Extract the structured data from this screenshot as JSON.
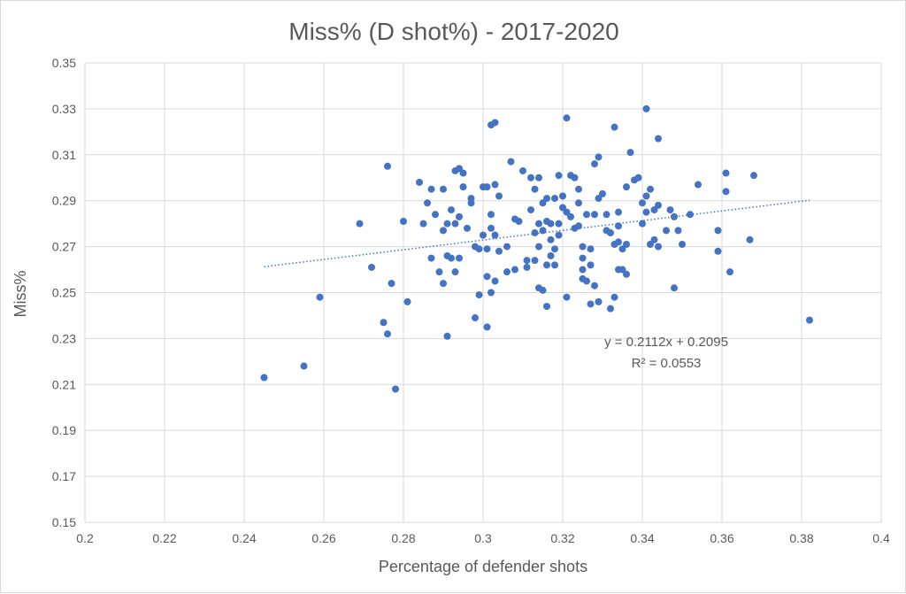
{
  "chart_data": {
    "type": "scatter",
    "title": "Miss% (D shot%) - 2017-2020",
    "xlabel": "Percentage of defender shots",
    "ylabel": "Miss%",
    "xlim": [
      0.2,
      0.4
    ],
    "ylim": [
      0.15,
      0.35
    ],
    "xticks": [
      "0.2",
      "0.22",
      "0.24",
      "0.26",
      "0.28",
      "0.3",
      "0.32",
      "0.34",
      "0.36",
      "0.38",
      "0.4"
    ],
    "yticks": [
      "0.15",
      "0.17",
      "0.19",
      "0.21",
      "0.23",
      "0.25",
      "0.27",
      "0.29",
      "0.31",
      "0.33",
      "0.35"
    ],
    "grid": "vertical-and-horizontal",
    "marker_color": "#4472c4",
    "trendline": {
      "type": "linear",
      "slope": 0.2112,
      "intercept": 0.2095,
      "x_range": [
        0.245,
        0.382
      ],
      "equation_label": "y = 0.2112x + 0.2095",
      "r2_label": "R² = 0.0553"
    },
    "points": [
      [
        0.245,
        0.213
      ],
      [
        0.255,
        0.218
      ],
      [
        0.259,
        0.248
      ],
      [
        0.269,
        0.28
      ],
      [
        0.272,
        0.261
      ],
      [
        0.275,
        0.237
      ],
      [
        0.276,
        0.305
      ],
      [
        0.276,
        0.232
      ],
      [
        0.277,
        0.254
      ],
      [
        0.278,
        0.208
      ],
      [
        0.28,
        0.281
      ],
      [
        0.281,
        0.246
      ],
      [
        0.284,
        0.298
      ],
      [
        0.285,
        0.28
      ],
      [
        0.286,
        0.289
      ],
      [
        0.287,
        0.265
      ],
      [
        0.287,
        0.295
      ],
      [
        0.288,
        0.284
      ],
      [
        0.289,
        0.259
      ],
      [
        0.29,
        0.277
      ],
      [
        0.29,
        0.295
      ],
      [
        0.29,
        0.254
      ],
      [
        0.291,
        0.266
      ],
      [
        0.291,
        0.28
      ],
      [
        0.291,
        0.231
      ],
      [
        0.292,
        0.265
      ],
      [
        0.292,
        0.286
      ],
      [
        0.293,
        0.28
      ],
      [
        0.293,
        0.259
      ],
      [
        0.293,
        0.303
      ],
      [
        0.294,
        0.304
      ],
      [
        0.294,
        0.283
      ],
      [
        0.294,
        0.265
      ],
      [
        0.295,
        0.302
      ],
      [
        0.295,
        0.296
      ],
      [
        0.296,
        0.278
      ],
      [
        0.297,
        0.289
      ],
      [
        0.297,
        0.291
      ],
      [
        0.298,
        0.27
      ],
      [
        0.298,
        0.239
      ],
      [
        0.299,
        0.269
      ],
      [
        0.299,
        0.249
      ],
      [
        0.3,
        0.296
      ],
      [
        0.3,
        0.275
      ],
      [
        0.301,
        0.296
      ],
      [
        0.301,
        0.269
      ],
      [
        0.301,
        0.235
      ],
      [
        0.301,
        0.257
      ],
      [
        0.302,
        0.278
      ],
      [
        0.302,
        0.25
      ],
      [
        0.302,
        0.284
      ],
      [
        0.302,
        0.323
      ],
      [
        0.303,
        0.324
      ],
      [
        0.303,
        0.275
      ],
      [
        0.303,
        0.297
      ],
      [
        0.303,
        0.255
      ],
      [
        0.304,
        0.292
      ],
      [
        0.304,
        0.268
      ],
      [
        0.306,
        0.259
      ],
      [
        0.306,
        0.27
      ],
      [
        0.307,
        0.307
      ],
      [
        0.308,
        0.282
      ],
      [
        0.308,
        0.26
      ],
      [
        0.309,
        0.281
      ],
      [
        0.31,
        0.303
      ],
      [
        0.311,
        0.264
      ],
      [
        0.311,
        0.261
      ],
      [
        0.312,
        0.286
      ],
      [
        0.312,
        0.3
      ],
      [
        0.313,
        0.276
      ],
      [
        0.313,
        0.295
      ],
      [
        0.313,
        0.264
      ],
      [
        0.314,
        0.28
      ],
      [
        0.314,
        0.252
      ],
      [
        0.314,
        0.27
      ],
      [
        0.314,
        0.3
      ],
      [
        0.315,
        0.289
      ],
      [
        0.315,
        0.251
      ],
      [
        0.315,
        0.277
      ],
      [
        0.316,
        0.281
      ],
      [
        0.316,
        0.291
      ],
      [
        0.316,
        0.262
      ],
      [
        0.316,
        0.244
      ],
      [
        0.317,
        0.273
      ],
      [
        0.317,
        0.28
      ],
      [
        0.317,
        0.266
      ],
      [
        0.318,
        0.291
      ],
      [
        0.318,
        0.269
      ],
      [
        0.318,
        0.262
      ],
      [
        0.319,
        0.301
      ],
      [
        0.319,
        0.28
      ],
      [
        0.319,
        0.275
      ],
      [
        0.32,
        0.292
      ],
      [
        0.32,
        0.287
      ],
      [
        0.321,
        0.285
      ],
      [
        0.321,
        0.248
      ],
      [
        0.321,
        0.326
      ],
      [
        0.322,
        0.301
      ],
      [
        0.322,
        0.283
      ],
      [
        0.323,
        0.3
      ],
      [
        0.323,
        0.278
      ],
      [
        0.324,
        0.295
      ],
      [
        0.324,
        0.289
      ],
      [
        0.324,
        0.279
      ],
      [
        0.325,
        0.27
      ],
      [
        0.325,
        0.265
      ],
      [
        0.325,
        0.256
      ],
      [
        0.325,
        0.26
      ],
      [
        0.326,
        0.255
      ],
      [
        0.326,
        0.284
      ],
      [
        0.327,
        0.245
      ],
      [
        0.327,
        0.262
      ],
      [
        0.327,
        0.269
      ],
      [
        0.328,
        0.306
      ],
      [
        0.328,
        0.284
      ],
      [
        0.328,
        0.253
      ],
      [
        0.329,
        0.309
      ],
      [
        0.329,
        0.291
      ],
      [
        0.329,
        0.246
      ],
      [
        0.33,
        0.293
      ],
      [
        0.331,
        0.277
      ],
      [
        0.331,
        0.284
      ],
      [
        0.332,
        0.276
      ],
      [
        0.332,
        0.243
      ],
      [
        0.333,
        0.322
      ],
      [
        0.333,
        0.271
      ],
      [
        0.333,
        0.248
      ],
      [
        0.334,
        0.285
      ],
      [
        0.334,
        0.26
      ],
      [
        0.334,
        0.279
      ],
      [
        0.334,
        0.272
      ],
      [
        0.335,
        0.269
      ],
      [
        0.335,
        0.26
      ],
      [
        0.336,
        0.271
      ],
      [
        0.336,
        0.258
      ],
      [
        0.336,
        0.296
      ],
      [
        0.337,
        0.311
      ],
      [
        0.338,
        0.299
      ],
      [
        0.339,
        0.3
      ],
      [
        0.34,
        0.289
      ],
      [
        0.34,
        0.28
      ],
      [
        0.341,
        0.33
      ],
      [
        0.341,
        0.292
      ],
      [
        0.341,
        0.285
      ],
      [
        0.342,
        0.295
      ],
      [
        0.342,
        0.271
      ],
      [
        0.343,
        0.286
      ],
      [
        0.343,
        0.273
      ],
      [
        0.344,
        0.317
      ],
      [
        0.344,
        0.288
      ],
      [
        0.344,
        0.27
      ],
      [
        0.346,
        0.277
      ],
      [
        0.347,
        0.286
      ],
      [
        0.348,
        0.283
      ],
      [
        0.348,
        0.252
      ],
      [
        0.349,
        0.277
      ],
      [
        0.35,
        0.271
      ],
      [
        0.352,
        0.284
      ],
      [
        0.354,
        0.297
      ],
      [
        0.359,
        0.277
      ],
      [
        0.359,
        0.268
      ],
      [
        0.361,
        0.302
      ],
      [
        0.361,
        0.294
      ],
      [
        0.362,
        0.259
      ],
      [
        0.367,
        0.273
      ],
      [
        0.368,
        0.301
      ],
      [
        0.382,
        0.238
      ]
    ]
  }
}
